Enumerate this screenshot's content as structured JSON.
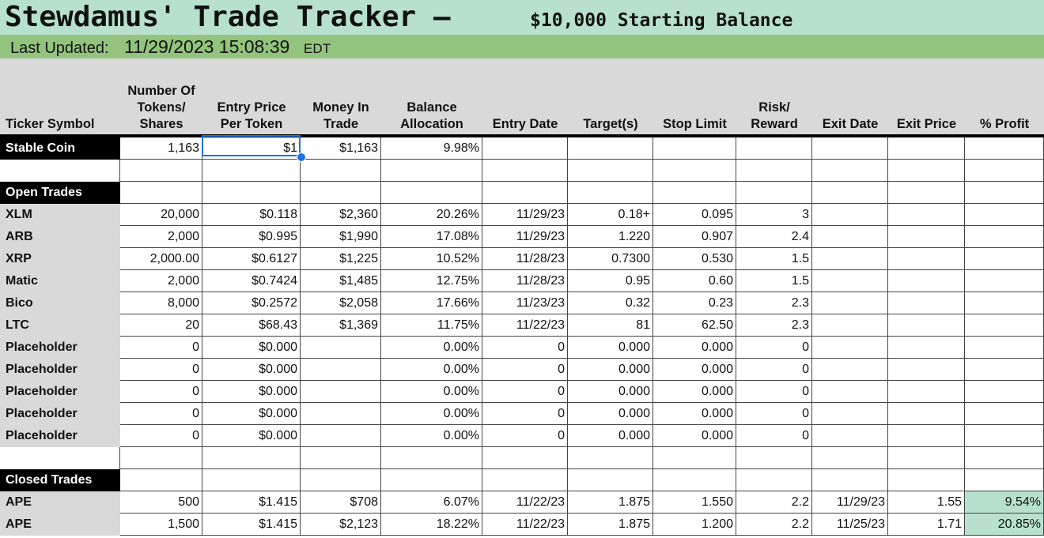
{
  "header": {
    "title": "Stewdamus' Trade Tracker –",
    "subtitle": "$10,000 Starting Balance",
    "updated_label": "Last Updated:",
    "updated_value": "11/29/2023 15:08:39",
    "updated_tz": "EDT"
  },
  "columns": [
    {
      "label": "Ticker Symbol"
    },
    {
      "label": "Number Of Tokens/ Shares"
    },
    {
      "label": "Entry Price Per Token"
    },
    {
      "label": "Money In Trade"
    },
    {
      "label": "Balance Allocation"
    },
    {
      "label": "Entry Date"
    },
    {
      "label": "Target(s)"
    },
    {
      "label": "Stop Limit"
    },
    {
      "label": "Risk/ Reward"
    },
    {
      "label": "Exit Date"
    },
    {
      "label": "Exit Price"
    },
    {
      "label": "% Profit"
    }
  ],
  "stable": {
    "ticker": "Stable Coin",
    "cells": [
      "1,163",
      "$1",
      "$1,163",
      "9.98%",
      "",
      "",
      "",
      "",
      "",
      "",
      ""
    ]
  },
  "open_label": "Open Trades",
  "open_trades": [
    {
      "ticker": "XLM",
      "cells": [
        "20,000",
        "$0.118",
        "$2,360",
        "20.26%",
        "11/29/23",
        "0.18+",
        "0.095",
        "3",
        "",
        "",
        ""
      ]
    },
    {
      "ticker": "ARB",
      "cells": [
        "2,000",
        "$0.995",
        "$1,990",
        "17.08%",
        "11/29/23",
        "1.220",
        "0.907",
        "2.4",
        "",
        "",
        ""
      ]
    },
    {
      "ticker": "XRP",
      "cells": [
        "2,000.00",
        "$0.6127",
        "$1,225",
        "10.52%",
        "11/28/23",
        "0.7300",
        "0.530",
        "1.5",
        "",
        "",
        ""
      ]
    },
    {
      "ticker": "Matic",
      "cells": [
        "2,000",
        "$0.7424",
        "$1,485",
        "12.75%",
        "11/28/23",
        "0.95",
        "0.60",
        "1.5",
        "",
        "",
        ""
      ]
    },
    {
      "ticker": "Bico",
      "cells": [
        "8,000",
        "$0.2572",
        "$2,058",
        "17.66%",
        "11/23/23",
        "0.32",
        "0.23",
        "2.3",
        "",
        "",
        ""
      ]
    },
    {
      "ticker": "LTC",
      "cells": [
        "20",
        "$68.43",
        "$1,369",
        "11.75%",
        "11/22/23",
        "81",
        "62.50",
        "2.3",
        "",
        "",
        ""
      ]
    },
    {
      "ticker": "Placeholder",
      "cells": [
        "0",
        "$0.000",
        "",
        "0.00%",
        "0",
        "0.000",
        "0.000",
        "0",
        "",
        "",
        ""
      ]
    },
    {
      "ticker": "Placeholder",
      "cells": [
        "0",
        "$0.000",
        "",
        "0.00%",
        "0",
        "0.000",
        "0.000",
        "0",
        "",
        "",
        ""
      ]
    },
    {
      "ticker": "Placeholder",
      "cells": [
        "0",
        "$0.000",
        "",
        "0.00%",
        "0",
        "0.000",
        "0.000",
        "0",
        "",
        "",
        ""
      ]
    },
    {
      "ticker": "Placeholder",
      "cells": [
        "0",
        "$0.000",
        "",
        "0.00%",
        "0",
        "0.000",
        "0.000",
        "0",
        "",
        "",
        ""
      ]
    },
    {
      "ticker": "Placeholder",
      "cells": [
        "0",
        "$0.000",
        "",
        "0.00%",
        "0",
        "0.000",
        "0.000",
        "0",
        "",
        "",
        ""
      ]
    }
  ],
  "closed_label": "Closed Trades",
  "closed_trades": [
    {
      "ticker": "APE",
      "cells": [
        "500",
        "$1.415",
        "$708",
        "6.07%",
        "11/22/23",
        "1.875",
        "1.550",
        "2.2",
        "11/29/23",
        "1.55",
        "9.54%"
      ]
    },
    {
      "ticker": "APE",
      "cells": [
        "1,500",
        "$1.415",
        "$2,123",
        "18.22%",
        "11/22/23",
        "1.875",
        "1.200",
        "2.2",
        "11/25/23",
        "1.71",
        "20.85%"
      ]
    }
  ],
  "selected_cell": "Entry Price Per Token / Stable Coin"
}
